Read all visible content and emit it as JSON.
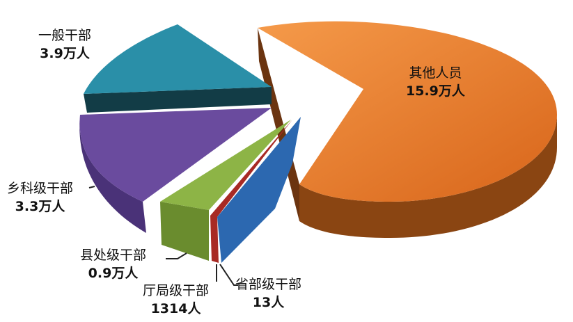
{
  "chart_data": {
    "type": "pie",
    "style": "3d-exploded",
    "slices": [
      {
        "label": "其他人员",
        "value_text": "15.9万人",
        "value": 159000,
        "color": "#e87722",
        "side_color": "#7a3a0c"
      },
      {
        "label": "一般干部",
        "value_text": "3.9万人",
        "value": 39000,
        "color": "#2a8fa8",
        "side_color": "#123c46"
      },
      {
        "label": "乡科级干部",
        "value_text": "3.3万人",
        "value": 33000,
        "color": "#6a4b9e",
        "side_color": "#3e2a63"
      },
      {
        "label": "县处级干部",
        "value_text": "0.9万人",
        "value": 9000,
        "color": "#7da23a",
        "side_color": "#4f6a22"
      },
      {
        "label": "厅局级干部",
        "value_text": "1314人",
        "value": 1314,
        "color": "#b0302a",
        "side_color": "#6a1a16"
      },
      {
        "label": "省部级干部",
        "value_text": "13人",
        "value": 13,
        "color": "#2c68b0",
        "side_color": "#1c4478"
      }
    ]
  }
}
